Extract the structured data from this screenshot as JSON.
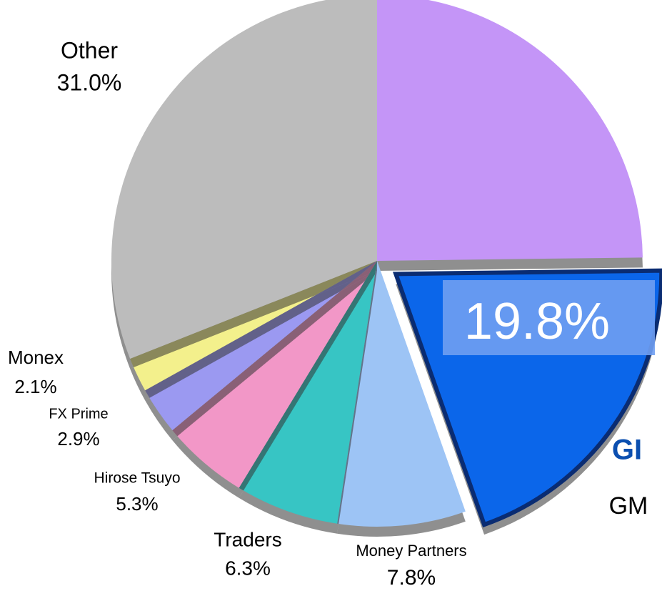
{
  "chart_data": {
    "type": "pie",
    "categories": [
      null,
      "GM",
      "Money Partners",
      "Traders",
      "Hirose Tsuyo",
      "FX Prime",
      "Monex",
      "Other"
    ],
    "values": [
      24.8,
      19.8,
      7.8,
      6.3,
      5.3,
      2.9,
      2.1,
      31.0
    ],
    "value_labels": [
      null,
      "19.8%",
      "7.8%",
      "6.3%",
      "5.3%",
      "2.9%",
      "2.1%",
      "31.0%"
    ],
    "colors": [
      "#c495f7",
      "#0b66ea",
      "#9dc4f5",
      "#37c5c4",
      "#f297c7",
      "#9b99f1",
      "#f3f08c",
      "#bcbcbc"
    ],
    "annotations": [
      "GI"
    ]
  }
}
